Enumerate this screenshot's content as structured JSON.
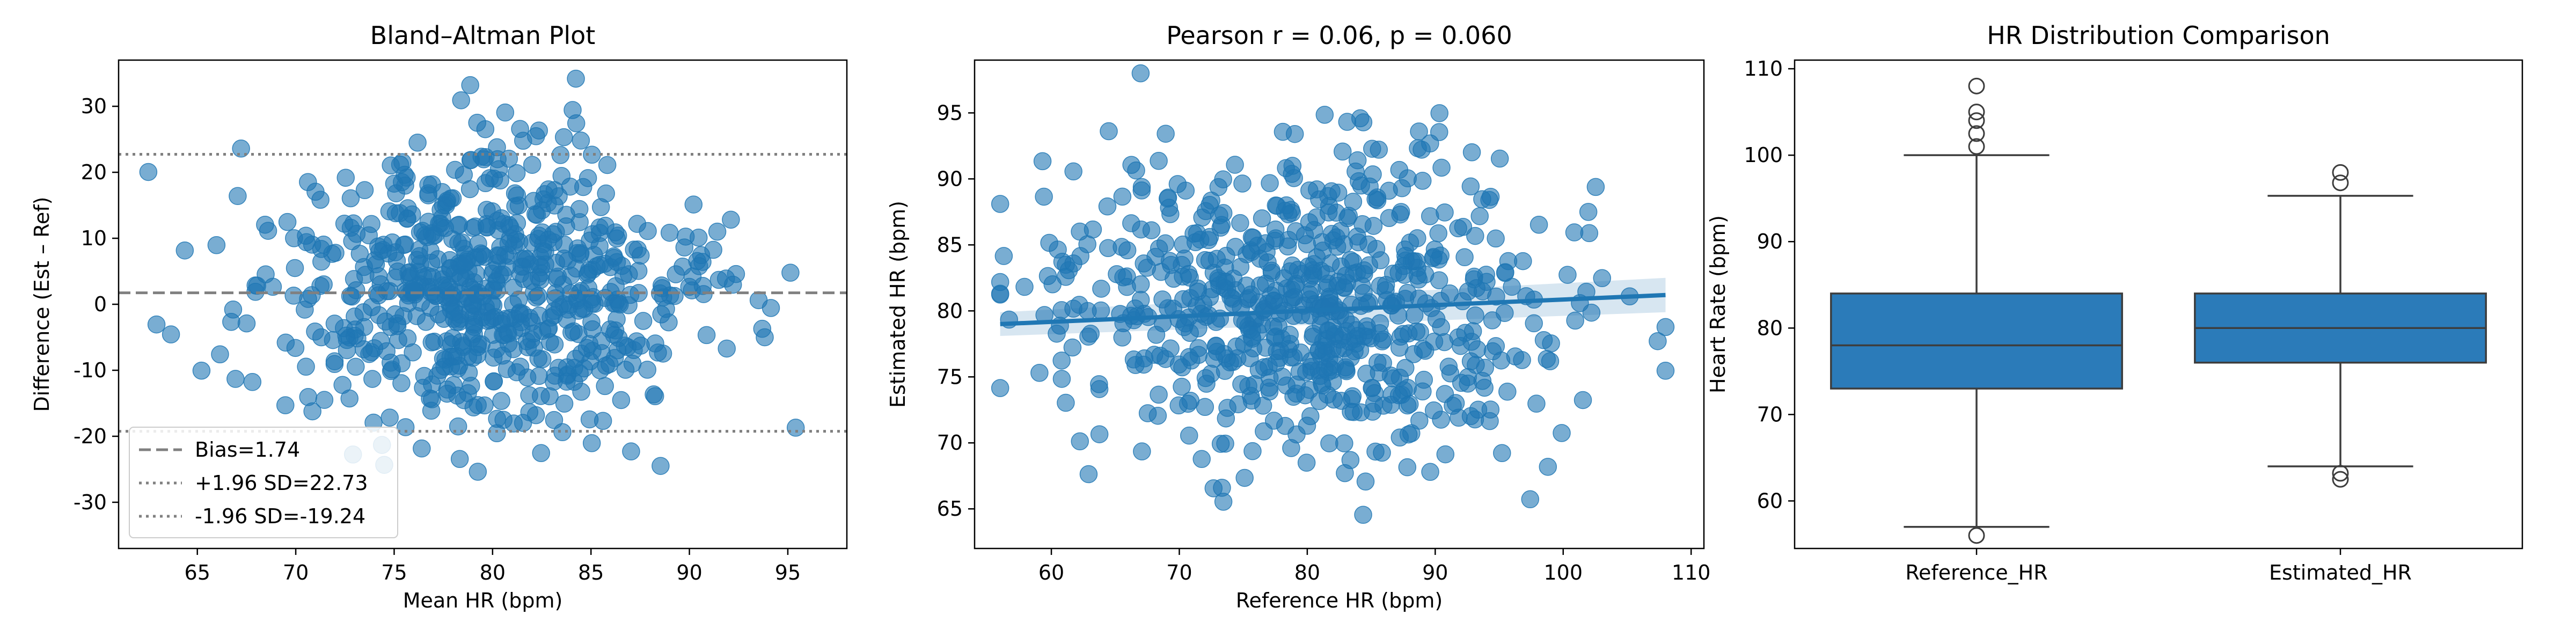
{
  "colors": {
    "series": "#1f77b4",
    "series_alpha": 0.6,
    "reference_lines": "#808080",
    "box_fill": "#2b7bb9",
    "box_edge": "#3d3d3d"
  },
  "chart_data": [
    {
      "type": "scatter",
      "title": "Bland–Altman Plot",
      "xlabel": "Mean HR (bpm)",
      "ylabel": "Difference (Est – Ref)",
      "xlim": [
        61,
        98
      ],
      "ylim": [
        -37,
        37
      ],
      "xticks": [
        65,
        70,
        75,
        80,
        85,
        90,
        95
      ],
      "yticks": [
        -30,
        -20,
        -10,
        0,
        10,
        20,
        30
      ],
      "grid": false,
      "legend_position": "bottom-left",
      "reference_lines": [
        {
          "label": "Bias=1.74",
          "y": 1.74,
          "style": "dashed"
        },
        {
          "label": "+1.96 SD=22.73",
          "y": 22.73,
          "style": "dotted"
        },
        {
          "label": "-1.96 SD=-19.24",
          "y": -19.24,
          "style": "dotted"
        }
      ],
      "points": {
        "n": 700,
        "x_mean": 79.5,
        "x_sd": 5.5,
        "y_mean": 1.74,
        "y_sd": 10.7
      }
    },
    {
      "type": "scatter",
      "title": "Pearson r = 0.06, p = 0.060",
      "xlabel": "Reference HR (bpm)",
      "ylabel": "Estimated HR (bpm)",
      "xlim": [
        54,
        111
      ],
      "ylim": [
        62,
        99
      ],
      "xticks": [
        60,
        70,
        80,
        90,
        100,
        110
      ],
      "yticks": [
        65,
        70,
        75,
        80,
        85,
        90,
        95
      ],
      "grid": false,
      "regression": {
        "x": [
          56,
          108
        ],
        "y": [
          79.0,
          81.2
        ],
        "ci_halfwidth": [
          0.9,
          1.3
        ]
      },
      "points": {
        "n": 700,
        "x_mean": 79.5,
        "x_sd": 9.5,
        "y_mean": 80.5,
        "y_sd": 6.0
      }
    },
    {
      "type": "box",
      "title": "HR Distribution Comparison",
      "xlabel": "",
      "ylabel": "Heart Rate (bpm)",
      "categories": [
        "Reference_HR",
        "Estimated_HR"
      ],
      "ylim": [
        54.5,
        111
      ],
      "yticks": [
        60,
        70,
        80,
        90,
        100,
        110
      ],
      "grid": false,
      "boxes": [
        {
          "name": "Reference_HR",
          "whisker_low": 57,
          "q1": 73,
          "median": 78,
          "q3": 84,
          "whisker_high": 100,
          "outliers": [
            56,
            101,
            102.5,
            104,
            105,
            108
          ]
        },
        {
          "name": "Estimated_HR",
          "whisker_low": 64,
          "q1": 76,
          "median": 80,
          "q3": 84,
          "whisker_high": 95.3,
          "outliers": [
            62.5,
            63.2,
            96.8,
            98
          ]
        }
      ]
    }
  ]
}
